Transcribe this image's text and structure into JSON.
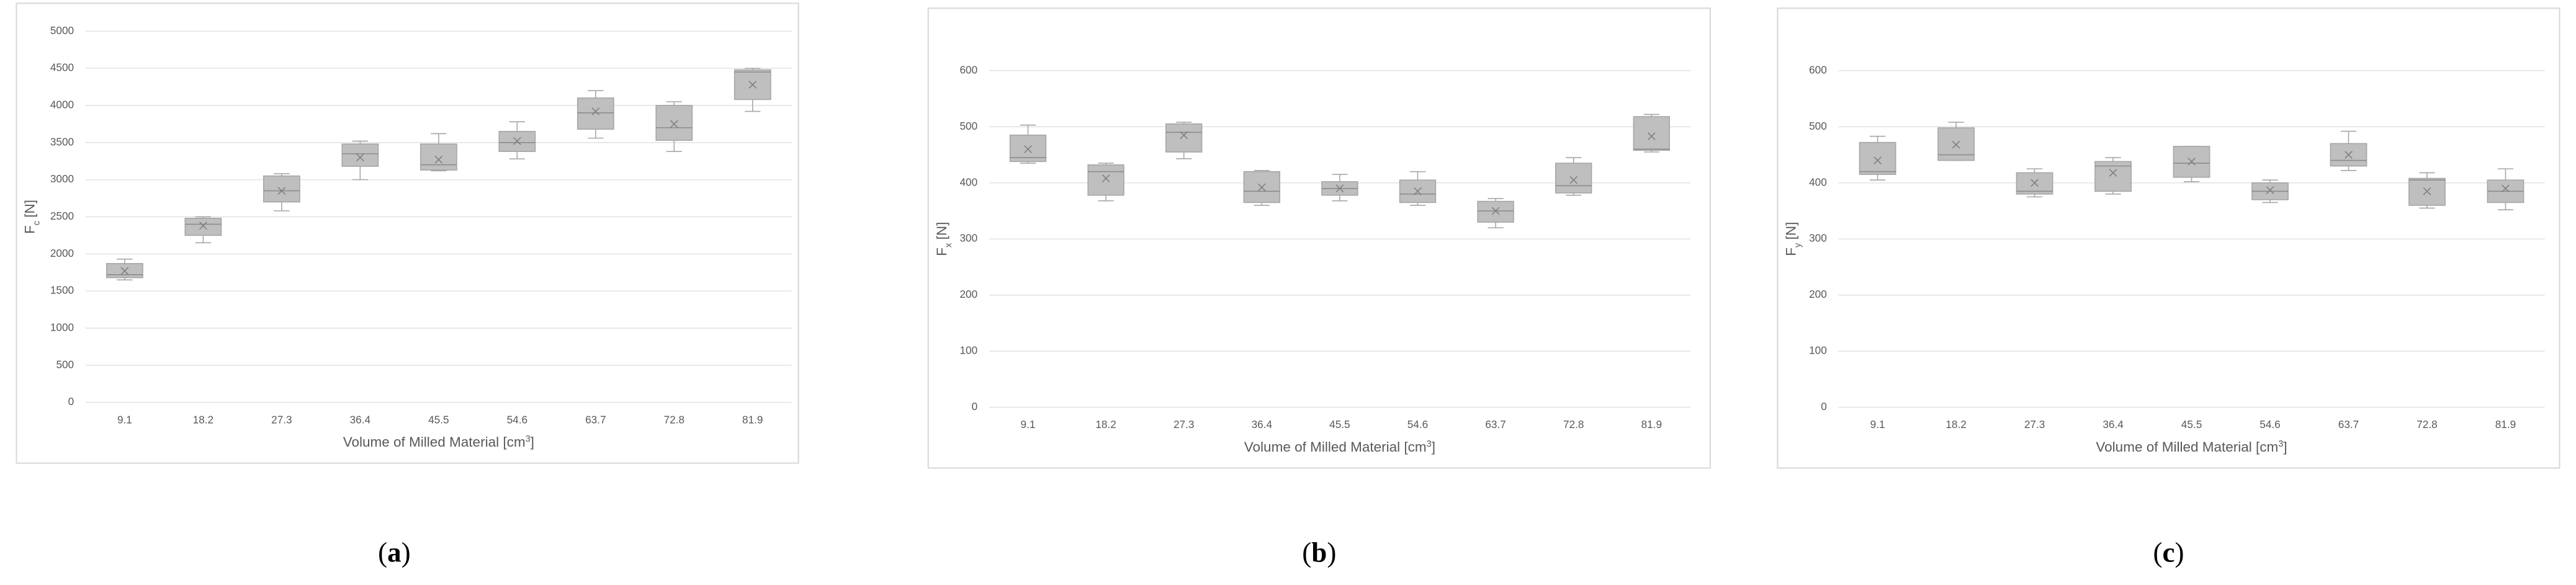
{
  "chart_data": [
    {
      "type": "box",
      "caption_parts": [
        "(",
        "a",
        ")"
      ],
      "ylabel_symbol": "F",
      "ylabel_subscript": "c",
      "ylabel_unit": "[N]",
      "xlabel_parts": [
        "Volume of Milled Material [cm",
        "3",
        "]"
      ],
      "categories": [
        "9.1",
        "18.2",
        "27.3",
        "36.4",
        "45.5",
        "54.6",
        "63.7",
        "72.8",
        "81.9"
      ],
      "min": [
        1650,
        2150,
        2580,
        3000,
        3120,
        3280,
        3560,
        3380,
        3920
      ],
      "q1": [
        1680,
        2250,
        2700,
        3180,
        3130,
        3380,
        3680,
        3530,
        4080
      ],
      "median": [
        1720,
        2400,
        2850,
        3350,
        3200,
        3500,
        3900,
        3700,
        4450
      ],
      "q3": [
        1870,
        2480,
        3050,
        3480,
        3480,
        3650,
        4100,
        4000,
        4480
      ],
      "max": [
        1930,
        2500,
        3080,
        3520,
        3620,
        3780,
        4200,
        4050,
        4500
      ],
      "mean": [
        1770,
        2380,
        2850,
        3300,
        3270,
        3520,
        3920,
        3750,
        4280
      ],
      "ylim": [
        0,
        5000
      ],
      "yticks": [
        0,
        500,
        1000,
        1500,
        2000,
        2500,
        3000,
        3500,
        4000,
        4500,
        5000
      ],
      "grid": true,
      "color": "#bfbfbf"
    },
    {
      "type": "box",
      "caption_parts": [
        "(",
        "b",
        ")"
      ],
      "ylabel_symbol": "F",
      "ylabel_subscript": "x",
      "ylabel_unit": "[N]",
      "xlabel_parts": [
        "Volume of Milled Material [cm",
        "3",
        "]"
      ],
      "categories": [
        "9.1",
        "18.2",
        "27.3",
        "36.4",
        "45.5",
        "54.6",
        "63.7",
        "72.8",
        "81.9"
      ],
      "min": [
        435,
        368,
        443,
        360,
        368,
        360,
        320,
        378,
        455
      ],
      "q1": [
        438,
        378,
        455,
        365,
        378,
        365,
        330,
        382,
        458
      ],
      "median": [
        445,
        420,
        490,
        385,
        390,
        380,
        350,
        395,
        460
      ],
      "q3": [
        485,
        432,
        505,
        420,
        402,
        405,
        367,
        435,
        518
      ],
      "max": [
        503,
        435,
        508,
        422,
        415,
        420,
        372,
        445,
        522
      ],
      "mean": [
        460,
        408,
        485,
        392,
        390,
        385,
        350,
        405,
        483
      ],
      "ylim": [
        0,
        600
      ],
      "yticks": [
        0,
        100,
        200,
        300,
        400,
        500,
        600
      ],
      "grid": true,
      "color": "#bfbfbf"
    },
    {
      "type": "box",
      "caption_parts": [
        "(",
        "c",
        ")"
      ],
      "ylabel_symbol": "F",
      "ylabel_subscript": "y",
      "ylabel_unit": "[N]",
      "xlabel_parts": [
        "Volume of Milled Material [cm",
        "3",
        "]"
      ],
      "categories": [
        "9.1",
        "18.2",
        "27.3",
        "36.4",
        "45.5",
        "54.6",
        "63.7",
        "72.8",
        "81.9"
      ],
      "min": [
        405,
        440,
        375,
        380,
        402,
        365,
        422,
        355,
        352
      ],
      "q1": [
        415,
        440,
        380,
        385,
        410,
        370,
        430,
        360,
        365
      ],
      "median": [
        420,
        450,
        385,
        430,
        435,
        385,
        440,
        405,
        385
      ],
      "q3": [
        472,
        498,
        418,
        438,
        465,
        400,
        470,
        408,
        405
      ],
      "max": [
        483,
        508,
        425,
        445,
        465,
        405,
        492,
        418,
        425
      ],
      "mean": [
        440,
        468,
        400,
        418,
        438,
        387,
        450,
        385,
        390
      ],
      "ylim": [
        0,
        600
      ],
      "yticks": [
        0,
        100,
        200,
        300,
        400,
        500,
        600
      ],
      "grid": true,
      "color": "#bfbfbf"
    }
  ]
}
